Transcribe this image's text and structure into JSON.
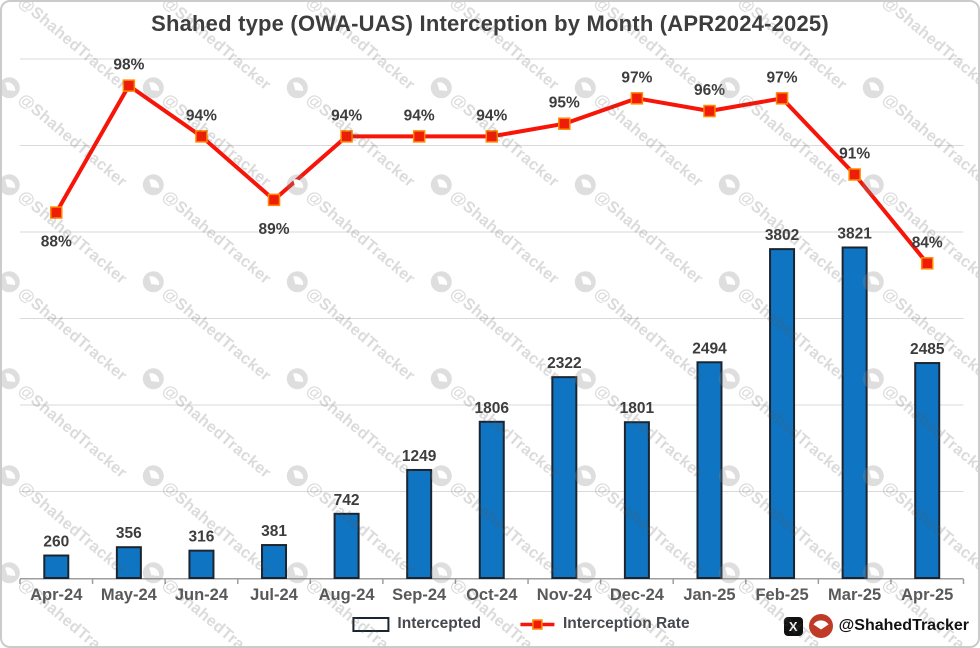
{
  "title": "Shahed type (OWA-UAS) Interception by Month (APR2024-2025)",
  "watermark": {
    "handle": "@ShahedTracker"
  },
  "badge": {
    "x_glyph": "X",
    "handle": "@ShahedTracker"
  },
  "legend": {
    "intercepted": "Intercepted",
    "rate": "Interception Rate"
  },
  "colors": {
    "bar": "#0f75c2",
    "bar_border": "#1b2531",
    "line": "#f71408",
    "marker_fill": "#ef1c07",
    "marker_border": "#ff8a00",
    "grid": "#d9d9d9",
    "axis": "#9e9e9e",
    "badge_red": "#c03a28",
    "watermark_gray": "#8a8a8a"
  },
  "chart_data": {
    "type": "bar",
    "subtype": "bar+line combo",
    "title": "Shahed type (OWA-UAS) Interception by Month (APR2024-2025)",
    "categories": [
      "Apr-24",
      "May-24",
      "Jun-24",
      "Jul-24",
      "Aug-24",
      "Sep-24",
      "Oct-24",
      "Nov-24",
      "Dec-24",
      "Jan-25",
      "Feb-25",
      "Mar-25",
      "Apr-25"
    ],
    "series": [
      {
        "name": "Intercepted",
        "type": "bar",
        "values": [
          260,
          356,
          316,
          381,
          742,
          1249,
          1806,
          2322,
          1801,
          2494,
          3802,
          3821,
          2485
        ],
        "labels": [
          "260",
          "356",
          "316",
          "381",
          "742",
          "1249",
          "1806",
          "2322",
          "1801",
          "2494",
          "3802",
          "3821",
          "2485"
        ]
      },
      {
        "name": "Interception Rate",
        "type": "line",
        "unit": "%",
        "values": [
          88,
          98,
          94,
          89,
          94,
          94,
          94,
          95,
          97,
          96,
          97,
          91,
          84
        ],
        "labels": [
          "88%",
          "98%",
          "94%",
          "89%",
          "94%",
          "94%",
          "94%",
          "95%",
          "97%",
          "96%",
          "97%",
          "91%",
          "84%"
        ],
        "label_below_indices": [
          0,
          3
        ]
      }
    ],
    "xlabel": "",
    "ylabel": "",
    "y_axis": {
      "min": 0,
      "max": 6000,
      "grid_step": 1000,
      "tick_labels_visible": false
    },
    "rate_axis": {
      "min": 59.2,
      "max": 100.1,
      "tick_labels_visible": false
    },
    "grid": true,
    "legend_position": "bottom"
  }
}
